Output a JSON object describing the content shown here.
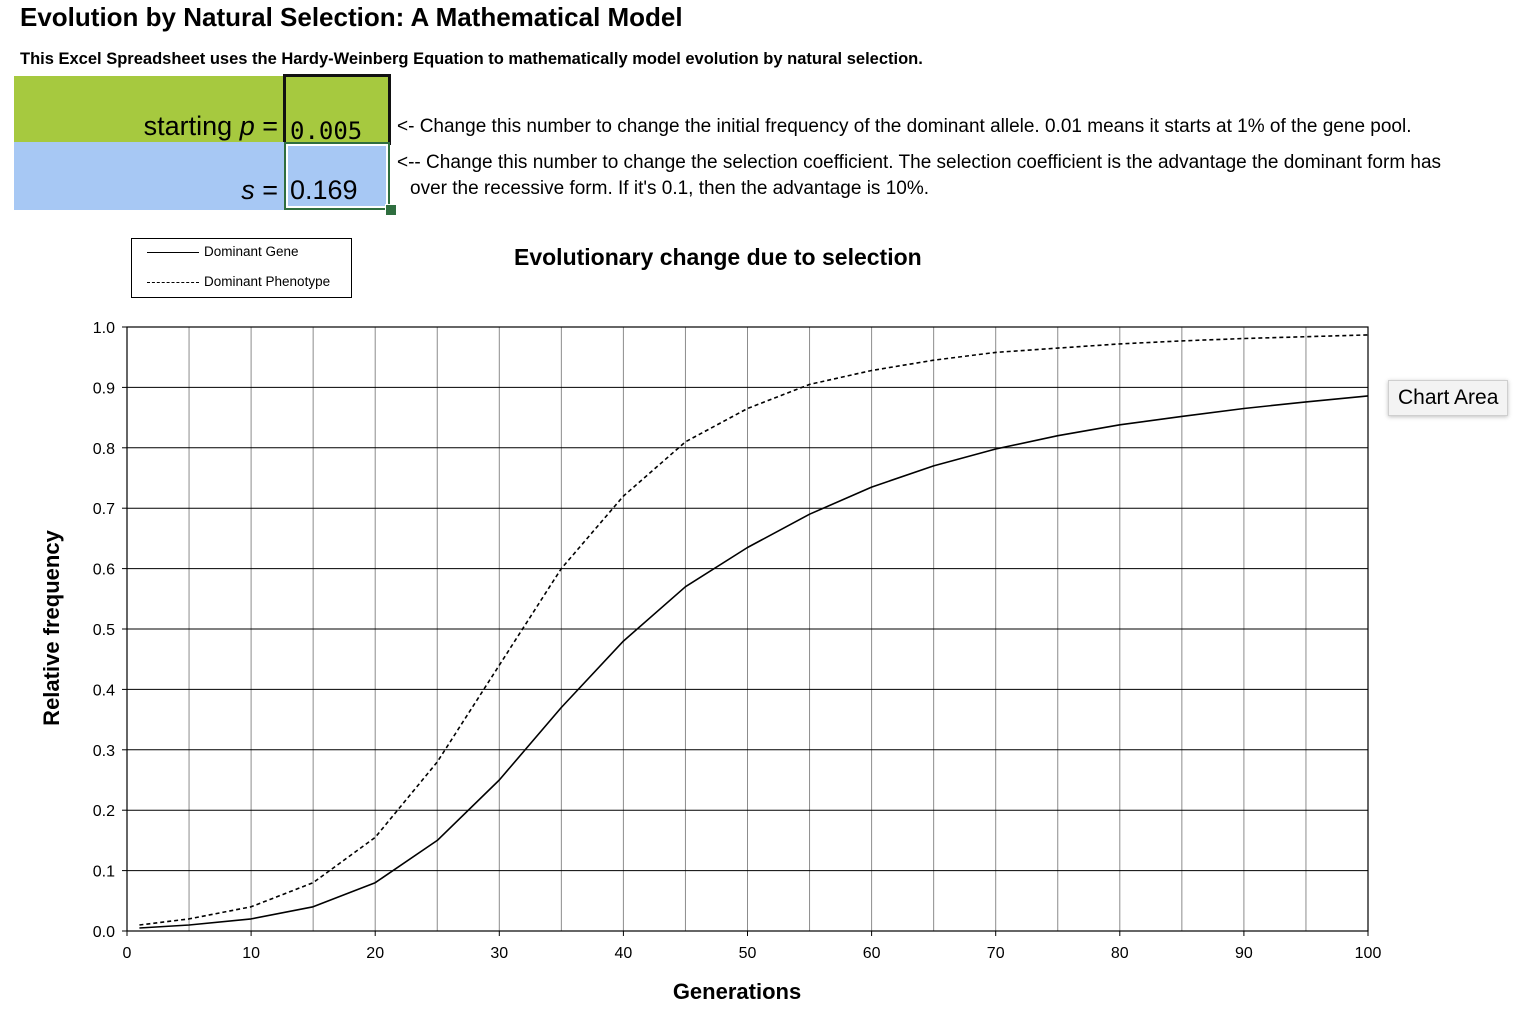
{
  "page": {
    "title": "Evolution by Natural Selection: A Mathematical Model",
    "subtitle": "This Excel Spreadsheet uses the Hardy-Weinberg Equation to mathematically model evolution by natural selection."
  },
  "inputs": {
    "p_label_prefix": "starting ",
    "p_label_var": "p",
    "p_label_suffix": " =",
    "p_value": "0.005",
    "s_label_var": "s",
    "s_label_suffix": " =",
    "s_value": "0.169",
    "p_note": "<- Change this number to change the initial frequency of the dominant allele. 0.01 means it starts at 1% of the gene pool.",
    "s_note_line1": "<-- Change this number to change the selection coefficient. The selection coefficient is the advantage the dominant form has",
    "s_note_line2": "over the recessive form. If it's 0.1, then the advantage is 10%.",
    "green_color": "#a6c93f",
    "blue_color": "#a7c8f4"
  },
  "tooltip": {
    "label": "Chart Area"
  },
  "chart_data": {
    "type": "line",
    "title": "Evolutionary change due to selection",
    "xlabel": "Generations",
    "ylabel": "Relative frequency",
    "xlim": [
      0,
      100
    ],
    "ylim": [
      0,
      1
    ],
    "x_ticks": [
      "0",
      "10",
      "20",
      "30",
      "40",
      "50",
      "60",
      "70",
      "80",
      "90",
      "100"
    ],
    "y_ticks": [
      "0.0",
      "0.1",
      "0.2",
      "0.3",
      "0.4",
      "0.5",
      "0.6",
      "0.7",
      "0.8",
      "0.9",
      "1.0"
    ],
    "grid": true,
    "legend_position": "top-left",
    "x": [
      1,
      5,
      10,
      15,
      20,
      25,
      30,
      35,
      40,
      45,
      50,
      55,
      60,
      65,
      70,
      75,
      80,
      85,
      90,
      95,
      100
    ],
    "series": [
      {
        "name": "Dominant Gene",
        "style": "solid",
        "values": [
          0.005,
          0.01,
          0.02,
          0.04,
          0.08,
          0.15,
          0.25,
          0.37,
          0.48,
          0.57,
          0.635,
          0.69,
          0.735,
          0.77,
          0.798,
          0.82,
          0.838,
          0.852,
          0.865,
          0.876,
          0.886
        ]
      },
      {
        "name": "Dominant Phenotype",
        "style": "dashed",
        "values": [
          0.01,
          0.02,
          0.04,
          0.08,
          0.155,
          0.28,
          0.44,
          0.6,
          0.72,
          0.81,
          0.865,
          0.905,
          0.928,
          0.945,
          0.958,
          0.965,
          0.972,
          0.977,
          0.981,
          0.984,
          0.987
        ]
      }
    ]
  }
}
